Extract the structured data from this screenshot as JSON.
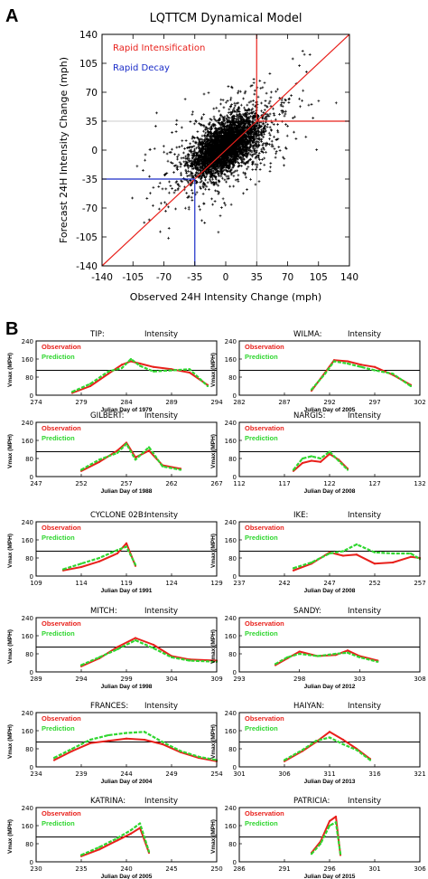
{
  "panel_a": {
    "letter": "A",
    "title": "LQTTCM Dynamical Model",
    "legend_ri": "Rapid Intensification",
    "legend_rd": "Rapid Decay",
    "colors": {
      "ri": "#e8201b",
      "rd": "#1a2cc8",
      "points": "#000000",
      "ref": "#999999"
    },
    "chart_data": {
      "type": "scatter",
      "title": "LQTTCM Dynamical Model",
      "xlabel": "Observed 24H Intensity Change (mph)",
      "ylabel": "Forecast 24H Intensity Change (mph)",
      "xlim": [
        -140,
        140
      ],
      "ylim": [
        -140,
        140
      ],
      "ticks": [
        -140,
        -105,
        -70,
        -35,
        0,
        35,
        70,
        105,
        140
      ],
      "thresholds": {
        "rapid_intensification": 35,
        "rapid_decay": -35
      },
      "diagonal": "y = x",
      "point_cloud": {
        "center": [
          0,
          5
        ],
        "note_points": "dense cloud"
      }
    }
  },
  "panel_b": {
    "letter": "B",
    "ylabel": "Vmax (MPH)",
    "yticks": [
      0,
      80,
      160,
      240
    ],
    "threshold": 110,
    "obs_label": "Observation",
    "pred_label": "Prediction",
    "title_suffix": "Intensity",
    "colors": {
      "obs": "#e8201b",
      "pred": "#2fd62f"
    },
    "chart_data": [
      {
        "type": "line",
        "storm": "TIP:",
        "xlabel": "Julian Day of 1979",
        "xticks": [
          274,
          279,
          284,
          289,
          294
        ],
        "xlim": [
          274,
          294
        ],
        "ylim": [
          0,
          240
        ],
        "series": [
          {
            "name": "Observation",
            "x": [
              278,
              280,
              282,
              283.5,
              284.5,
              285.5,
              287,
              289,
              291,
              293
            ],
            "y": [
              10,
              40,
              95,
              135,
              150,
              140,
              125,
              115,
              100,
              45
            ]
          },
          {
            "name": "Prediction",
            "x": [
              278,
              280,
              282,
              283.5,
              284.5,
              285.5,
              287,
              289,
              291,
              293
            ],
            "y": [
              15,
              50,
              105,
              120,
              160,
              130,
              105,
              110,
              115,
              40
            ]
          }
        ]
      },
      {
        "type": "line",
        "storm": "WILMA:",
        "xlabel": "Julian Day of 2005",
        "xticks": [
          282,
          287,
          292,
          297,
          302
        ],
        "xlim": [
          282,
          302
        ],
        "ylim": [
          0,
          240
        ],
        "series": [
          {
            "name": "Observation",
            "x": [
              290,
              291.5,
              292.5,
              294,
              295.5,
              297,
              299,
              301
            ],
            "y": [
              20,
              100,
              155,
              150,
              135,
              125,
              90,
              45
            ]
          },
          {
            "name": "Prediction",
            "x": [
              290,
              291.5,
              292.5,
              294,
              295.5,
              297,
              299,
              301
            ],
            "y": [
              25,
              95,
              150,
              140,
              125,
              110,
              95,
              40
            ]
          }
        ]
      },
      {
        "type": "line",
        "storm": "GILBERT:",
        "xlabel": "Julian Day of 1988",
        "xticks": [
          247,
          252,
          257,
          262,
          267
        ],
        "xlim": [
          247,
          267
        ],
        "ylim": [
          0,
          240
        ],
        "series": [
          {
            "name": "Observation",
            "x": [
              252,
              254,
              256,
              257,
              258,
              259.5,
              261,
              263
            ],
            "y": [
              25,
              65,
              115,
              150,
              85,
              115,
              50,
              35
            ]
          },
          {
            "name": "Prediction",
            "x": [
              252,
              254,
              256,
              257,
              258,
              259.5,
              261,
              263
            ],
            "y": [
              30,
              75,
              105,
              145,
              75,
              130,
              45,
              30
            ]
          }
        ]
      },
      {
        "type": "line",
        "storm": "NARGIS:",
        "xlabel": "Julian Day of 2008",
        "xticks": [
          112,
          117,
          122,
          127,
          132
        ],
        "xlim": [
          112,
          132
        ],
        "ylim": [
          0,
          240
        ],
        "series": [
          {
            "name": "Observation",
            "x": [
              118,
              119,
              120,
              121,
              122,
              123,
              124
            ],
            "y": [
              25,
              60,
              70,
              65,
              100,
              75,
              35
            ]
          },
          {
            "name": "Prediction",
            "x": [
              118,
              119,
              120,
              121,
              122,
              123,
              124
            ],
            "y": [
              30,
              80,
              90,
              80,
              110,
              70,
              30
            ]
          }
        ]
      },
      {
        "type": "line",
        "storm": "CYCLONE 02B:",
        "xlabel": "Julian Day of 1991",
        "xticks": [
          109,
          114,
          119,
          124,
          129
        ],
        "xlim": [
          109,
          129
        ],
        "ylim": [
          0,
          240
        ],
        "series": [
          {
            "name": "Observation",
            "x": [
              112,
              114,
              116,
              118,
              119,
              120
            ],
            "y": [
              25,
              40,
              65,
              100,
              145,
              45
            ]
          },
          {
            "name": "Prediction",
            "x": [
              112,
              114,
              116,
              118,
              119,
              120
            ],
            "y": [
              30,
              55,
              80,
              115,
              130,
              50
            ]
          }
        ]
      },
      {
        "type": "line",
        "storm": "IKE:",
        "xlabel": "Julian Day of 2008",
        "xticks": [
          237,
          242,
          247,
          252,
          257
        ],
        "xlim": [
          237,
          257
        ],
        "ylim": [
          0,
          240
        ],
        "series": [
          {
            "name": "Observation",
            "x": [
              243,
              245,
              247,
              248.5,
              250,
              252,
              254,
              256,
              257
            ],
            "y": [
              25,
              55,
              105,
              90,
              95,
              55,
              60,
              85,
              80
            ]
          },
          {
            "name": "Prediction",
            "x": [
              243,
              245,
              247,
              248.5,
              250,
              252,
              254,
              256,
              257
            ],
            "y": [
              35,
              60,
              100,
              110,
              140,
              105,
              100,
              100,
              75
            ]
          }
        ]
      },
      {
        "type": "line",
        "storm": "MITCH:",
        "xlabel": "Julian Day of 1998",
        "xticks": [
          289,
          294,
          299,
          304,
          309
        ],
        "xlim": [
          289,
          309
        ],
        "ylim": [
          0,
          240
        ],
        "series": [
          {
            "name": "Observation",
            "x": [
              294,
              296,
              298,
              300,
              302,
              304,
              306,
              309
            ],
            "y": [
              25,
              60,
              110,
              150,
              120,
              70,
              55,
              50
            ]
          },
          {
            "name": "Prediction",
            "x": [
              294,
              296,
              298,
              300,
              302,
              304,
              306,
              309
            ],
            "y": [
              30,
              65,
              100,
              140,
              105,
              65,
              50,
              45
            ]
          }
        ]
      },
      {
        "type": "line",
        "storm": "SANDY:",
        "xlabel": "Julian Day of 2012",
        "xticks": [
          293,
          298,
          303,
          308
        ],
        "xlim": [
          293,
          308
        ],
        "ylim": [
          0,
          240
        ],
        "series": [
          {
            "name": "Observation",
            "x": [
              296,
              297,
              298,
              299.5,
              301,
              302,
              303,
              304.5
            ],
            "y": [
              30,
              60,
              90,
              70,
              75,
              95,
              70,
              50
            ]
          },
          {
            "name": "Prediction",
            "x": [
              296,
              297,
              298,
              299.5,
              301,
              302,
              303,
              304.5
            ],
            "y": [
              35,
              65,
              80,
              70,
              80,
              85,
              65,
              45
            ]
          }
        ]
      },
      {
        "type": "line",
        "storm": "FRANCES:",
        "xlabel": "Julian Day of 2004",
        "xticks": [
          234,
          239,
          244,
          249,
          254
        ],
        "xlim": [
          234,
          254
        ],
        "ylim": [
          0,
          240
        ],
        "series": [
          {
            "name": "Observation",
            "x": [
              236,
              238,
              240,
              242,
              244,
              246,
              248,
              250,
              252,
              254
            ],
            "y": [
              30,
              70,
              105,
              115,
              125,
              120,
              100,
              65,
              40,
              25
            ]
          },
          {
            "name": "Prediction",
            "x": [
              236,
              238,
              240,
              242,
              244,
              246,
              248,
              250,
              252,
              254
            ],
            "y": [
              40,
              80,
              120,
              140,
              150,
              155,
              110,
              70,
              45,
              30
            ]
          }
        ]
      },
      {
        "type": "line",
        "storm": "HAIYAN:",
        "xlabel": "Julian Day of 2013",
        "xticks": [
          301,
          306,
          311,
          316,
          321
        ],
        "xlim": [
          301,
          321
        ],
        "ylim": [
          0,
          240
        ],
        "series": [
          {
            "name": "Observation",
            "x": [
              306,
              308,
              309.5,
              311,
              312.5,
              314,
              315.5
            ],
            "y": [
              25,
              70,
              110,
              155,
              120,
              80,
              35
            ]
          },
          {
            "name": "Prediction",
            "x": [
              306,
              308,
              309.5,
              311,
              312.5,
              314,
              315.5
            ],
            "y": [
              30,
              75,
              115,
              130,
              100,
              75,
              30
            ]
          }
        ]
      },
      {
        "type": "line",
        "storm": "KATRINA:",
        "xlabel": "Julian Day of 2005",
        "xticks": [
          230,
          235,
          240,
          245,
          250
        ],
        "xlim": [
          230,
          250
        ],
        "ylim": [
          0,
          240
        ],
        "series": [
          {
            "name": "Observation",
            "x": [
              235,
              237,
              239,
              240.5,
              241.5,
              242.5
            ],
            "y": [
              25,
              55,
              95,
              125,
              150,
              40
            ]
          },
          {
            "name": "Prediction",
            "x": [
              235,
              237,
              239,
              240.5,
              241.5,
              242.5
            ],
            "y": [
              30,
              65,
              105,
              140,
              170,
              45
            ]
          }
        ]
      },
      {
        "type": "line",
        "storm": "PATRICIA:",
        "xlabel": "Julian Day of 2015",
        "xticks": [
          286,
          291,
          296,
          301,
          306
        ],
        "xlim": [
          286,
          306
        ],
        "ylim": [
          0,
          240
        ],
        "series": [
          {
            "name": "Observation",
            "x": [
              294,
              295,
              296,
              296.7,
              297.2
            ],
            "y": [
              40,
              90,
              180,
              200,
              30
            ]
          },
          {
            "name": "Prediction",
            "x": [
              294,
              295,
              296,
              296.7,
              297.2
            ],
            "y": [
              35,
              80,
              160,
              175,
              35
            ]
          }
        ]
      }
    ]
  }
}
